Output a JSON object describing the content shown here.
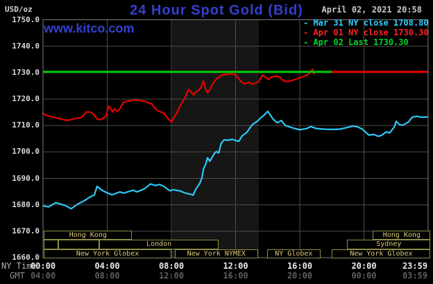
{
  "header": {
    "title": "24 Hour Spot Gold (Bid)",
    "datetime": "April 02, 2021 20:58",
    "watermark": "www.kitco.com",
    "unit_label": "USD/oz"
  },
  "axis_row_labels": {
    "ny_time": "NY Time",
    "gmt": "GMT"
  },
  "legend": [
    {
      "name": "mar31-close",
      "color": "#33ccff",
      "text": "- Mar 31 NY close 1708.80"
    },
    {
      "name": "apr01-close",
      "color": "#ff2020",
      "text": "- Apr 01 NY close 1730.30"
    },
    {
      "name": "apr02-last",
      "color": "#00d42a",
      "text": "- Apr 02 Last 1730.30"
    }
  ],
  "colors": {
    "background": "#000000",
    "grid": "#4e4e4e",
    "frame": "#7d7d7d",
    "band": "#161616",
    "series_mar31": "#2ec9f7",
    "series_apr01": "#e60000",
    "last_line": "#00ce00",
    "close_line": "#e60000",
    "title_blue": "#3440d0",
    "session_border": "#8f8f46",
    "session_text": "#dcc878"
  },
  "y_ticks": [
    {
      "label": "1750.0",
      "value": 1750
    },
    {
      "label": "1740.0",
      "value": 1740
    },
    {
      "label": "1730.0",
      "value": 1730
    },
    {
      "label": "1720.0",
      "value": 1720
    },
    {
      "label": "1710.0",
      "value": 1710
    },
    {
      "label": "1700.0",
      "value": 1700
    },
    {
      "label": "1690.0",
      "value": 1690
    },
    {
      "label": "1680.0",
      "value": 1680
    },
    {
      "label": "1670.0",
      "value": 1670
    },
    {
      "label": "1660.0",
      "value": 1660
    }
  ],
  "x_ticks": [
    {
      "hour": 0,
      "ny": "00:00",
      "gmt": "04:00"
    },
    {
      "hour": 4,
      "ny": "04:00",
      "gmt": "08:00"
    },
    {
      "hour": 8,
      "ny": "08:00",
      "gmt": "12:00"
    },
    {
      "hour": 12,
      "ny": "12:00",
      "gmt": "16:00"
    },
    {
      "hour": 16,
      "ny": "16:00",
      "gmt": "20:00"
    },
    {
      "hour": 20,
      "ny": "20:00",
      "gmt": "00:00"
    },
    {
      "hour": 23.983,
      "ny": "23:59",
      "gmt": "03:59"
    }
  ],
  "sessions": [
    {
      "row": 1,
      "from_hour": 0.05,
      "to_hour": 5.55,
      "label": "Hong Kong"
    },
    {
      "row": 1,
      "from_hour": 20.55,
      "to_hour": 24.15,
      "label": "Hong Kong"
    },
    {
      "row": 2,
      "from_hour": 0.05,
      "to_hour": 0.95,
      "label": ""
    },
    {
      "row": 2,
      "from_hour": 0.95,
      "to_hour": 3.5,
      "label": ""
    },
    {
      "row": 2,
      "from_hour": 3.5,
      "to_hour": 10.95,
      "label": "London"
    },
    {
      "row": 2,
      "from_hour": 18.95,
      "to_hour": 24.15,
      "label": "Sydney"
    },
    {
      "row": 3,
      "from_hour": 0.05,
      "to_hour": 8.0,
      "label": "New York Globex"
    },
    {
      "row": 3,
      "from_hour": 8.2,
      "to_hour": 13.4,
      "label": "New York NYMEX"
    },
    {
      "row": 3,
      "from_hour": 13.95,
      "to_hour": 17.3,
      "label": "NY Globex"
    },
    {
      "row": 3,
      "from_hour": 18.0,
      "to_hour": 24.15,
      "label": "New York Globex"
    }
  ],
  "chart_data": {
    "type": "line",
    "title": "24 Hour Spot Gold (Bid)",
    "xlabel": "NY Time (hours)",
    "ylabel": "USD/oz",
    "ylim": [
      1660,
      1750
    ],
    "xlim_hours": [
      0,
      24
    ],
    "grid": true,
    "legend_position": "top-right",
    "session_band": {
      "from_hour": 8.05,
      "to_hour": 13.45
    },
    "reference_lines": [
      {
        "name": "Apr 02 Last 1730.30",
        "value": 1730.3,
        "from_hour": 0,
        "to_hour": 18,
        "color_key": "last_line"
      },
      {
        "name": "Apr 01 NY close 1730.30",
        "value": 1730.3,
        "from_hour": 18,
        "to_hour": 23.983,
        "color_key": "close_line"
      }
    ],
    "series": [
      {
        "name": "Apr 01 (NY close 1730.30)",
        "color_key": "series_apr01",
        "points": [
          [
            0,
            1714.7
          ],
          [
            0.2,
            1713.8
          ],
          [
            0.65,
            1713.1
          ],
          [
            1.1,
            1712.5
          ],
          [
            1.5,
            1711.9
          ],
          [
            1.95,
            1712.5
          ],
          [
            2.4,
            1713.1
          ],
          [
            2.7,
            1715.1
          ],
          [
            2.95,
            1715.1
          ],
          [
            3.15,
            1714.3
          ],
          [
            3.35,
            1712.5
          ],
          [
            3.6,
            1712.2
          ],
          [
            3.9,
            1713.4
          ],
          [
            4.1,
            1717.3
          ],
          [
            4.25,
            1716.0
          ],
          [
            4.35,
            1715.1
          ],
          [
            4.45,
            1716.4
          ],
          [
            4.6,
            1715.3
          ],
          [
            4.75,
            1715.9
          ],
          [
            5.0,
            1718.6
          ],
          [
            5.2,
            1719.2
          ],
          [
            5.5,
            1719.4
          ],
          [
            5.75,
            1719.7
          ],
          [
            6.05,
            1719.4
          ],
          [
            6.35,
            1719.2
          ],
          [
            6.55,
            1718.6
          ],
          [
            6.8,
            1718.1
          ],
          [
            6.9,
            1716.9
          ],
          [
            7.15,
            1715.5
          ],
          [
            7.35,
            1715.1
          ],
          [
            7.5,
            1714.7
          ],
          [
            7.65,
            1713.8
          ],
          [
            7.8,
            1712.5
          ],
          [
            7.95,
            1711.6
          ],
          [
            8.0,
            1711.3
          ],
          [
            8.15,
            1713.0
          ],
          [
            8.3,
            1714.3
          ],
          [
            8.5,
            1716.9
          ],
          [
            8.7,
            1719.0
          ],
          [
            8.85,
            1720.5
          ],
          [
            9.0,
            1722.8
          ],
          [
            9.1,
            1723.6
          ],
          [
            9.25,
            1722.5
          ],
          [
            9.4,
            1721.5
          ],
          [
            9.55,
            1722.8
          ],
          [
            9.7,
            1723.2
          ],
          [
            9.85,
            1724.5
          ],
          [
            10.0,
            1726.8
          ],
          [
            10.15,
            1723.5
          ],
          [
            10.25,
            1722.4
          ],
          [
            10.4,
            1723.5
          ],
          [
            10.55,
            1725.5
          ],
          [
            10.75,
            1727.2
          ],
          [
            10.9,
            1728.0
          ],
          [
            11.1,
            1729.0
          ],
          [
            11.4,
            1729.3
          ],
          [
            11.75,
            1729.5
          ],
          [
            12.0,
            1729.2
          ],
          [
            12.2,
            1727.8
          ],
          [
            12.35,
            1726.5
          ],
          [
            12.55,
            1725.8
          ],
          [
            12.8,
            1726.3
          ],
          [
            13.05,
            1725.6
          ],
          [
            13.3,
            1726.2
          ],
          [
            13.45,
            1726.6
          ],
          [
            13.65,
            1729.0
          ],
          [
            13.9,
            1728.2
          ],
          [
            14.05,
            1727.4
          ],
          [
            14.25,
            1728.4
          ],
          [
            14.5,
            1728.7
          ],
          [
            14.75,
            1728.3
          ],
          [
            14.95,
            1727.0
          ],
          [
            15.2,
            1726.6
          ],
          [
            15.5,
            1727.0
          ],
          [
            15.8,
            1727.6
          ],
          [
            16.05,
            1728.1
          ],
          [
            16.35,
            1728.8
          ],
          [
            16.55,
            1729.4
          ],
          [
            16.8,
            1731.3
          ],
          [
            16.88,
            1729.6
          ],
          [
            17.0,
            1730.3
          ]
        ]
      },
      {
        "name": "Mar 31 (NY close 1708.80)",
        "color_key": "series_mar31",
        "points": [
          [
            0,
            1679.6
          ],
          [
            0.35,
            1679.2
          ],
          [
            0.8,
            1680.8
          ],
          [
            1.4,
            1679.7
          ],
          [
            1.75,
            1678.5
          ],
          [
            2.15,
            1680.2
          ],
          [
            2.5,
            1681.3
          ],
          [
            3.0,
            1683.2
          ],
          [
            3.2,
            1683.7
          ],
          [
            3.37,
            1687.0
          ],
          [
            3.6,
            1685.8
          ],
          [
            3.95,
            1684.6
          ],
          [
            4.3,
            1683.8
          ],
          [
            4.8,
            1684.9
          ],
          [
            5.0,
            1684.4
          ],
          [
            5.6,
            1685.5
          ],
          [
            5.85,
            1684.9
          ],
          [
            6.3,
            1686.0
          ],
          [
            6.7,
            1687.9
          ],
          [
            7.0,
            1687.3
          ],
          [
            7.25,
            1687.7
          ],
          [
            7.5,
            1687.1
          ],
          [
            7.7,
            1686.2
          ],
          [
            7.9,
            1685.3
          ],
          [
            8.1,
            1685.7
          ],
          [
            8.5,
            1685.3
          ],
          [
            8.9,
            1684.4
          ],
          [
            9.2,
            1684.0
          ],
          [
            9.35,
            1683.6
          ],
          [
            9.55,
            1686.2
          ],
          [
            9.75,
            1687.9
          ],
          [
            9.9,
            1690.1
          ],
          [
            10.0,
            1693.6
          ],
          [
            10.15,
            1695.5
          ],
          [
            10.25,
            1697.8
          ],
          [
            10.4,
            1696.5
          ],
          [
            10.65,
            1699.2
          ],
          [
            10.8,
            1700.2
          ],
          [
            10.95,
            1699.6
          ],
          [
            11.1,
            1703.3
          ],
          [
            11.3,
            1704.6
          ],
          [
            11.55,
            1704.4
          ],
          [
            11.8,
            1704.8
          ],
          [
            12.0,
            1704.3
          ],
          [
            12.2,
            1704.0
          ],
          [
            12.4,
            1706.0
          ],
          [
            12.7,
            1707.4
          ],
          [
            12.95,
            1709.6
          ],
          [
            13.1,
            1710.6
          ],
          [
            13.35,
            1711.6
          ],
          [
            13.55,
            1712.8
          ],
          [
            13.8,
            1714.0
          ],
          [
            14.0,
            1715.4
          ],
          [
            14.2,
            1713.6
          ],
          [
            14.35,
            1712.3
          ],
          [
            14.6,
            1711.0
          ],
          [
            14.85,
            1711.9
          ],
          [
            15.1,
            1710.0
          ],
          [
            15.35,
            1709.5
          ],
          [
            15.6,
            1709.0
          ],
          [
            16.0,
            1708.4
          ],
          [
            16.4,
            1708.8
          ],
          [
            16.7,
            1709.6
          ],
          [
            17.0,
            1708.9
          ],
          [
            17.5,
            1708.6
          ],
          [
            18.0,
            1708.5
          ],
          [
            18.5,
            1708.6
          ],
          [
            19.0,
            1709.3
          ],
          [
            19.3,
            1709.8
          ],
          [
            19.6,
            1709.5
          ],
          [
            19.9,
            1708.6
          ],
          [
            20.1,
            1707.5
          ],
          [
            20.3,
            1706.4
          ],
          [
            20.6,
            1706.6
          ],
          [
            20.9,
            1705.9
          ],
          [
            21.1,
            1706.3
          ],
          [
            21.4,
            1707.6
          ],
          [
            21.6,
            1707.2
          ],
          [
            21.9,
            1709.5
          ],
          [
            22.0,
            1711.6
          ],
          [
            22.2,
            1710.4
          ],
          [
            22.4,
            1710.1
          ],
          [
            22.6,
            1710.7
          ],
          [
            22.8,
            1711.5
          ],
          [
            23.0,
            1713.1
          ],
          [
            23.3,
            1713.5
          ],
          [
            23.6,
            1713.1
          ],
          [
            23.98,
            1713.3
          ]
        ]
      }
    ]
  }
}
